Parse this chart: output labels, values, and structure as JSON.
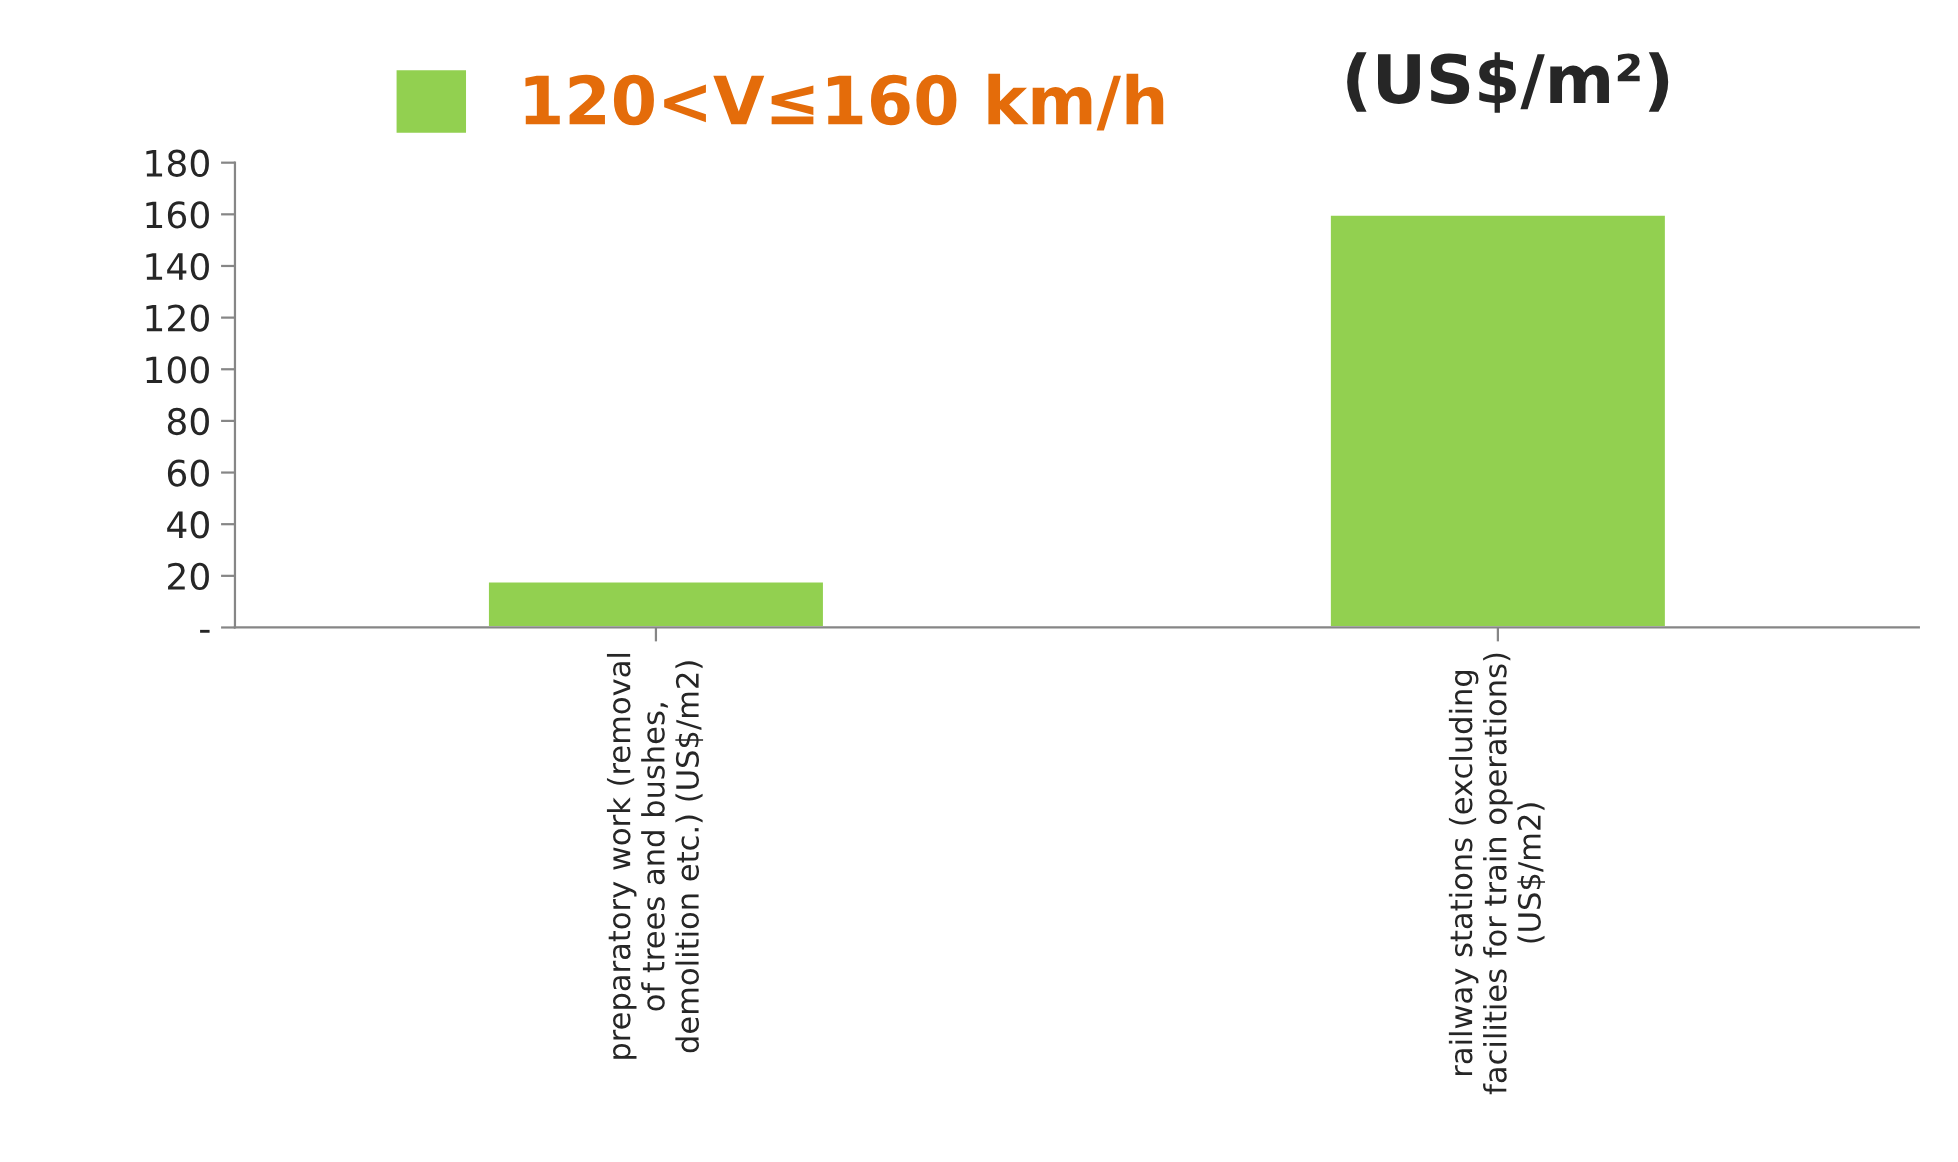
{
  "chart_data": {
    "type": "bar",
    "title": "(US$/m²)",
    "categories": [
      "preparatory work (removal\nof trees and bushes,\ndemolition etc.) (US$/m2)",
      "railway stations (excluding\nfacilities for train operations)\n(US$/m2)"
    ],
    "series": [
      {
        "name": "120<V≤160 km/h",
        "color": "#92d050",
        "values": [
          18,
          160
        ]
      }
    ],
    "ylim": [
      0,
      180
    ],
    "yticks": [
      {
        "value": 0,
        "label": "-"
      },
      20,
      40,
      60,
      80,
      100,
      120,
      140,
      160,
      180
    ],
    "grid": false,
    "legend": "top"
  }
}
